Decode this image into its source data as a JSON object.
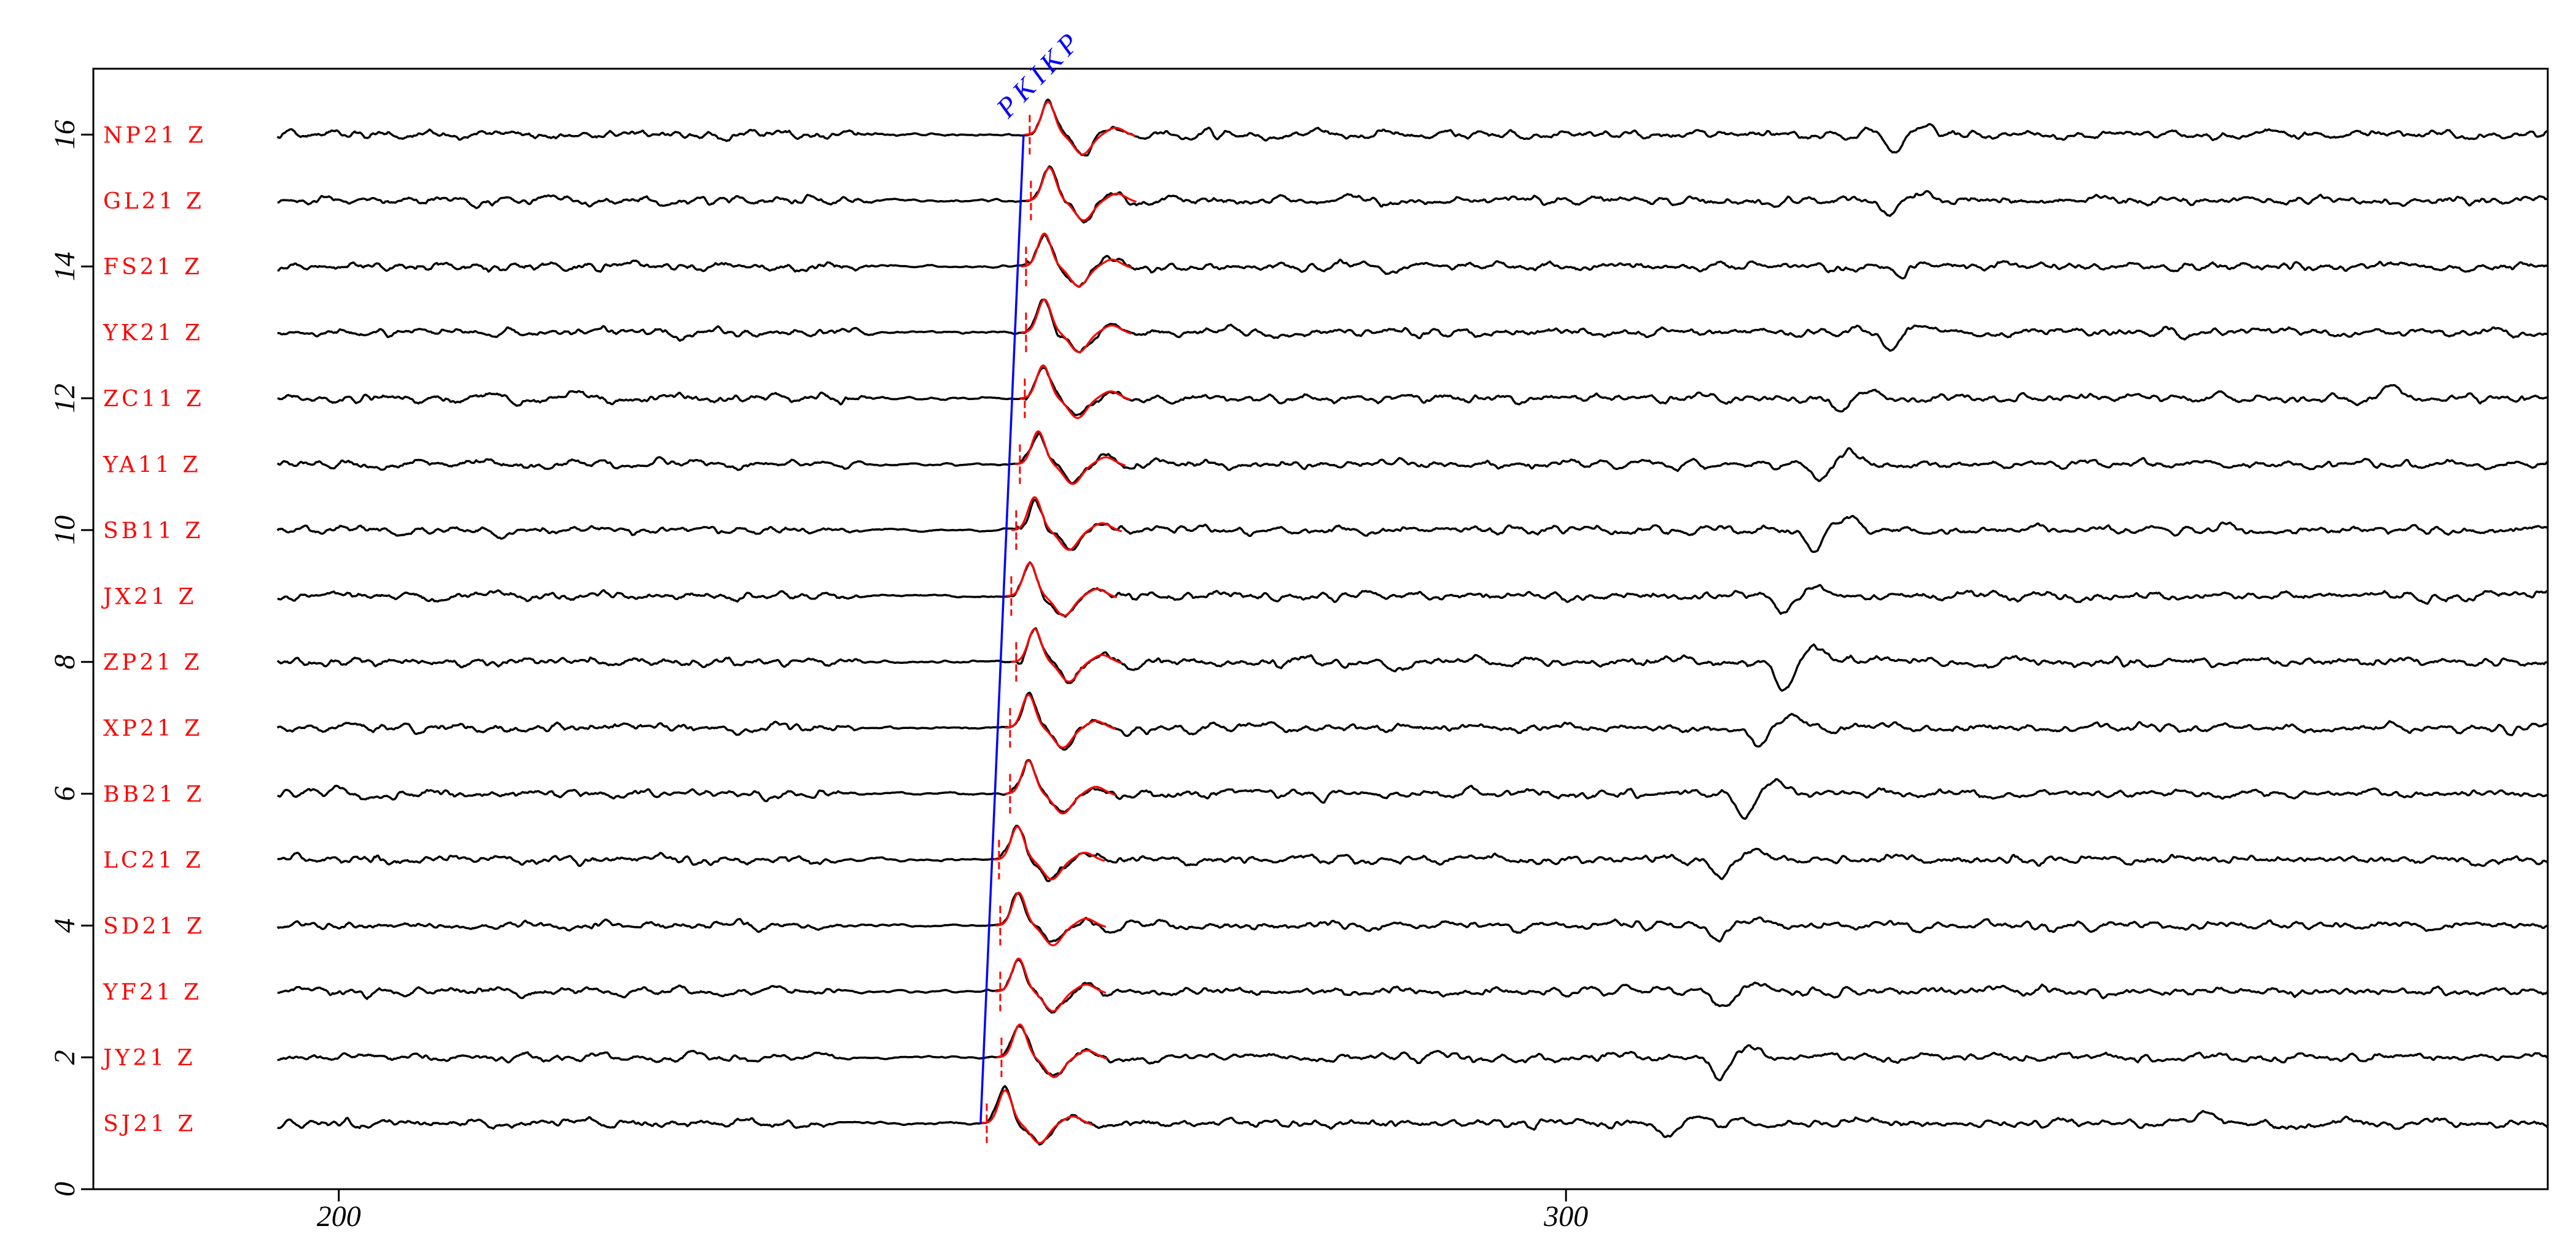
{
  "colors": {
    "background": "#ffffff",
    "frame": "#000000",
    "trace": "#000000",
    "station_label": "#ff0000",
    "pick_mark": "#ff0000",
    "synthetic": "#ff0000",
    "phase_line": "#0000ff"
  },
  "chart_data": {
    "type": "line",
    "xlim": [
      180,
      380
    ],
    "ylim": [
      0,
      17
    ],
    "x_ticks": [
      200,
      300
    ],
    "x_tick_labels": [
      "200",
      "300"
    ],
    "y_ticks": [
      0,
      2,
      4,
      6,
      8,
      10,
      12,
      14,
      16
    ],
    "y_tick_labels": [
      "0",
      "2",
      "4",
      "6",
      "8",
      "10",
      "12",
      "14",
      "16"
    ],
    "grid": false,
    "x_start": 195,
    "x_end": 380,
    "arrival_peak": 0.5,
    "arrival_trough": -0.3,
    "phase_line": {
      "label": "PKIKP",
      "x": [
        252.3,
        255.8
      ],
      "y": [
        1,
        16
      ]
    },
    "series": [
      {
        "name": "SJ21 Z",
        "offset": 1,
        "pick": 252.8,
        "later_arrival": {
          "t": 308.4,
          "amp": -0.2
        },
        "features": [
          [
            352.2,
            0.15
          ]
        ]
      },
      {
        "name": "JY21 Z",
        "offset": 2,
        "pick": 254.0,
        "later_arrival": {
          "t": 312.5,
          "amp": -0.27
        }
      },
      {
        "name": "YF21 Z",
        "offset": 3,
        "pick": 253.9,
        "later_arrival": {
          "t": 312.7,
          "amp": -0.27
        }
      },
      {
        "name": "SD21 Z",
        "offset": 4,
        "pick": 253.9,
        "later_arrival": {
          "t": 312.3,
          "amp": -0.15
        }
      },
      {
        "name": "LC21 Z",
        "offset": 5,
        "pick": 253.8,
        "later_arrival": {
          "t": 312.6,
          "amp": -0.25
        }
      },
      {
        "name": "BB21 Z",
        "offset": 6,
        "pick": 254.7,
        "later_arrival": {
          "t": 314.6,
          "amp": -0.3
        }
      },
      {
        "name": "XP21 Z",
        "offset": 7,
        "pick": 254.7,
        "later_arrival": {
          "t": 315.7,
          "amp": -0.3
        }
      },
      {
        "name": "ZP21 Z",
        "offset": 8,
        "pick": 255.2,
        "later_arrival": {
          "t": 317.8,
          "amp": -0.45
        },
        "features": [
          [
            286.5,
            -0.15
          ]
        ]
      },
      {
        "name": "JX21 Z",
        "offset": 9,
        "pick": 254.8,
        "later_arrival": {
          "t": 317.6,
          "amp": -0.25
        }
      },
      {
        "name": "SB11 Z",
        "offset": 10,
        "pick": 255.2,
        "later_arrival": {
          "t": 320.2,
          "amp": -0.3
        },
        "features": [
          [
            213.4,
            -0.1
          ]
        ]
      },
      {
        "name": "YA11 Z",
        "offset": 11,
        "pick": 255.5,
        "later_arrival": {
          "t": 320.6,
          "amp": -0.28
        }
      },
      {
        "name": "ZC11 Z",
        "offset": 12,
        "pick": 255.9,
        "later_arrival": {
          "t": 322.4,
          "amp": -0.2
        },
        "features": [
          [
            214.5,
            -0.12
          ],
          [
            219.8,
            0.1
          ],
          [
            367.3,
            0.15
          ]
        ]
      },
      {
        "name": "YK21 Z",
        "offset": 13,
        "pick": 256.0,
        "later_arrival": {
          "t": 326.4,
          "amp": -0.25
        }
      },
      {
        "name": "FS21 Z",
        "offset": 14,
        "pick": 256.0,
        "later_arrival": {
          "t": 327.0,
          "amp": -0.18
        }
      },
      {
        "name": "GL21 Z",
        "offset": 15,
        "pick": 256.4,
        "later_arrival": {
          "t": 326.4,
          "amp": -0.25
        }
      },
      {
        "name": "NP21 Z",
        "offset": 16,
        "pick": 256.3,
        "later_arrival": {
          "t": 326.8,
          "amp": -0.25
        }
      }
    ]
  }
}
